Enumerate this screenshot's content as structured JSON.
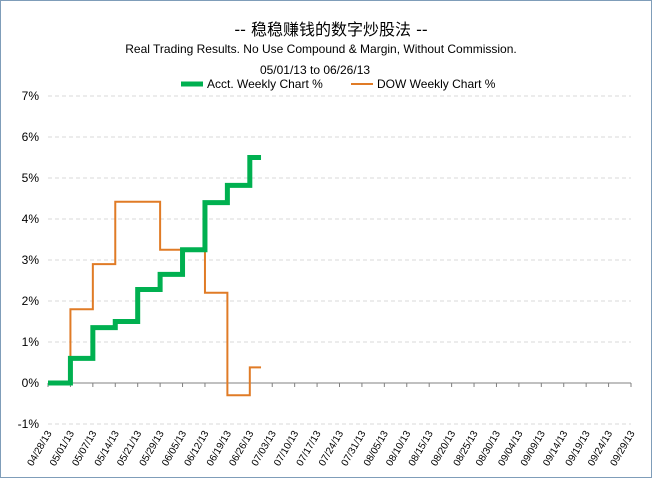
{
  "colors": {
    "acct": "#00b050",
    "dow": "#e07b26",
    "axis": "#808080",
    "frame_border": "#7f9db9"
  },
  "chart_data": {
    "type": "line",
    "title": "--  稳稳赚钱的数字炒股法  --",
    "subtitle": "Real Trading Results. No Use Compound & Margin, Without Commission.",
    "date_range": "05/01/13  to  06/26/13",
    "legend_position": "top-center",
    "grid": true,
    "ylim": [
      -1,
      7
    ],
    "yticks": [
      "-1%",
      "0%",
      "1%",
      "2%",
      "3%",
      "4%",
      "5%",
      "6%",
      "7%"
    ],
    "x_tick_labels": [
      "04/28/13",
      "05/01/13",
      "05/07/13",
      "05/14/13",
      "05/21/13",
      "05/29/13",
      "06/05/13",
      "06/12/13",
      "06/19/13",
      "06/26/13",
      "07/03/13",
      "07/10/13",
      "07/17/13",
      "07/24/13",
      "07/31/13",
      "08/05/13",
      "08/10/13",
      "08/15/13",
      "08/20/13",
      "08/25/13",
      "08/30/13",
      "09/04/13",
      "09/09/13",
      "09/14/13",
      "09/19/13",
      "09/24/13",
      "09/29/13"
    ],
    "series": [
      {
        "name": "Acct.  Weekly Chart %",
        "color": "#00b050",
        "step": true,
        "points": [
          [
            0,
            0.0
          ],
          [
            1,
            0.6
          ],
          [
            2,
            1.35
          ],
          [
            3,
            1.5
          ],
          [
            4,
            2.28
          ],
          [
            5,
            2.65
          ],
          [
            6,
            3.25
          ],
          [
            7,
            4.4
          ],
          [
            8,
            4.82
          ],
          [
            9,
            5.5
          ],
          [
            9.5,
            5.5
          ]
        ]
      },
      {
        "name": "DOW  Weekly Chart %",
        "color": "#e07b26",
        "step": true,
        "points": [
          [
            0,
            0.0
          ],
          [
            1,
            1.8
          ],
          [
            2,
            2.9
          ],
          [
            3,
            4.42
          ],
          [
            5,
            3.25
          ],
          [
            7,
            2.2
          ],
          [
            8,
            -0.3
          ],
          [
            9,
            0.38
          ],
          [
            9.5,
            0.38
          ]
        ]
      }
    ]
  }
}
